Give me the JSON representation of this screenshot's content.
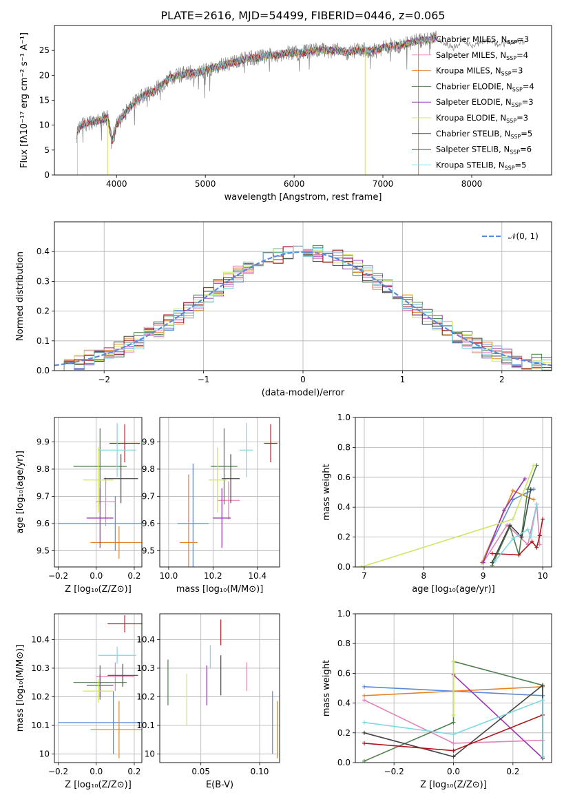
{
  "figure_title": "PLATE=2616, MJD=54499, FIBERID=0446, z=0.065",
  "chart_data": [
    {
      "id": "spectrum",
      "type": "line",
      "title": "PLATE=2616, MJD=54499, FIBERID=0446, z=0.065",
      "xlabel": "wavelength [Angstrom, rest frame]",
      "ylabel": "Flux [fλ10⁻¹⁷ erg cm⁻² s⁻¹ A⁻¹]",
      "xlim": [
        3300,
        8900
      ],
      "ylim": [
        0,
        30
      ],
      "xticks": [
        4000,
        5000,
        6000,
        7000,
        8000
      ],
      "yticks": [
        0,
        5,
        10,
        15,
        20,
        25
      ],
      "grid": false,
      "legend_position": "right",
      "series": [
        {
          "label": "Chabrier MILES, N",
          "sub": "SSP",
          "tail": "=3",
          "color": "#5b8bd8"
        },
        {
          "label": "Salpeter MILES, N",
          "sub": "SSP",
          "tail": "=4",
          "color": "#e383b9"
        },
        {
          "label": "Kroupa MILES, N",
          "sub": "SSP",
          "tail": "=3",
          "color": "#e58427"
        },
        {
          "label": "Chabrier ELODIE, N",
          "sub": "SSP",
          "tail": "=4",
          "color": "#4e7f4e"
        },
        {
          "label": "Salpeter ELODIE, N",
          "sub": "SSP",
          "tail": "=3",
          "color": "#9a32b4"
        },
        {
          "label": "Kroupa ELODIE, N",
          "sub": "SSP",
          "tail": "=3",
          "color": "#cfe462"
        },
        {
          "label": "Chabrier STELIB, N",
          "sub": "SSP",
          "tail": "=5",
          "color": "#444444"
        },
        {
          "label": "Salpeter STELIB, N",
          "sub": "SSP",
          "tail": "=6",
          "color": "#b0161c"
        },
        {
          "label": "Kroupa STELIB, N",
          "sub": "SSP",
          "tail": "=5",
          "color": "#7fd8e0"
        }
      ],
      "continuum": {
        "x": [
          3550,
          3600,
          3700,
          3800,
          3900,
          3950,
          4000,
          4100,
          4200,
          4300,
          4400,
          4500,
          4600,
          4700,
          4800,
          4900,
          5000,
          5100,
          5200,
          5300,
          5400,
          5500,
          5600,
          5700,
          5800,
          5900,
          6000,
          6100,
          6200,
          6300,
          6400,
          6500,
          6600,
          6700,
          6800,
          6900,
          7000,
          7100,
          7200,
          7300,
          7400,
          7500,
          7600
        ],
        "y": [
          8,
          10,
          10.5,
          11,
          11.5,
          7,
          10,
          12.5,
          14.5,
          16,
          16.5,
          18,
          19.5,
          20,
          20.5,
          20.5,
          21,
          21.5,
          22,
          22.5,
          23,
          23.5,
          23.5,
          24,
          24,
          24.5,
          24.5,
          24.5,
          25,
          25,
          25,
          25,
          24.5,
          25,
          25,
          25,
          25.5,
          26,
          26,
          26.5,
          27,
          27,
          27.5
        ]
      },
      "grey_tail": {
        "x": [
          7600,
          7700,
          7800,
          7900,
          8000,
          8100,
          8200,
          8300,
          8400,
          8500,
          8600
        ],
        "y": [
          27.5,
          26.5,
          25.5,
          27,
          26,
          26.5,
          27,
          26,
          26.5,
          27,
          26.5
        ]
      }
    },
    {
      "id": "residuals",
      "type": "step",
      "xlabel": "(data-model)/error",
      "ylabel": "Normed distribution",
      "xlim": [
        -2.5,
        2.5
      ],
      "ylim": [
        0,
        0.5
      ],
      "xticks": [
        -2,
        -1,
        0,
        1,
        2
      ],
      "xtick_labels": [
        "−2",
        "−1",
        "0",
        "1",
        "2"
      ],
      "yticks": [
        0.0,
        0.1,
        0.2,
        0.3,
        0.4
      ],
      "ytick_labels": [
        "0.0",
        "0.1",
        "0.2",
        "0.3",
        "0.4"
      ],
      "grid": true,
      "bin_width": 0.1,
      "gauss_label": "𝒩(0, 1)",
      "gauss_color": "#5b8bd8",
      "legend_position": "top-right"
    },
    {
      "id": "age-vs-Z",
      "type": "errorbar",
      "xlabel": "Z [log₁₀(Z/Z⊙)]",
      "ylabel": "age  [log₁₀(age/yr)]",
      "xlim": [
        -0.22,
        0.24
      ],
      "ylim": [
        9.44,
        9.99
      ],
      "xticks": [
        -0.2,
        0.0,
        0.2
      ],
      "xtick_labels": [
        "−0.2",
        "0.0",
        "0.2"
      ],
      "yticks": [
        9.5,
        9.6,
        9.7,
        9.8,
        9.9
      ],
      "grid": true,
      "points": [
        {
          "x": 0.1,
          "y": 9.6,
          "xerr": 0.3,
          "yerr": 0.1,
          "color": "#5b8bd8"
        },
        {
          "x": 0.05,
          "y": 9.68,
          "xerr": 0.05,
          "yerr": 0.09,
          "color": "#e383b9"
        },
        {
          "x": 0.12,
          "y": 9.53,
          "xerr": 0.15,
          "yerr": 0.06,
          "color": "#e58427"
        },
        {
          "x": 0.02,
          "y": 9.81,
          "xerr": 0.14,
          "yerr": 0.14,
          "color": "#4e7f4e"
        },
        {
          "x": 0.02,
          "y": 9.62,
          "xerr": 0.07,
          "yerr": 0.11,
          "color": "#9a32b4"
        },
        {
          "x": 0.01,
          "y": 9.76,
          "xerr": 0.08,
          "yerr": 0.12,
          "color": "#cfe462"
        },
        {
          "x": 0.13,
          "y": 9.765,
          "xerr": 0.09,
          "yerr": 0.09,
          "color": "#444444"
        },
        {
          "x": 0.15,
          "y": 9.895,
          "xerr": 0.08,
          "yerr": 0.07,
          "color": "#b0161c"
        },
        {
          "x": 0.11,
          "y": 9.87,
          "xerr": 0.1,
          "yerr": 0.1,
          "color": "#7fd8e0"
        }
      ]
    },
    {
      "id": "age-vs-mass",
      "type": "errorbar",
      "xlabel": "mass [log₁₀(M/M⊙)]",
      "ylabel": "",
      "xlim": [
        9.96,
        10.5
      ],
      "ylim": [
        9.44,
        9.99
      ],
      "xticks": [
        10.0,
        10.2,
        10.4
      ],
      "xtick_labels": [
        "10.0",
        "10.2",
        "10.4"
      ],
      "yticks": [
        9.5,
        9.6,
        9.7,
        9.8,
        9.9
      ],
      "grid": true,
      "points": [
        {
          "x": 10.11,
          "y": 9.6,
          "xerr": 0.07,
          "yerr": 0.22,
          "color": "#5b8bd8"
        },
        {
          "x": 10.27,
          "y": 9.685,
          "xerr": 0.05,
          "yerr": 0.07,
          "color": "#e383b9"
        },
        {
          "x": 10.09,
          "y": 9.53,
          "xerr": 0.04,
          "yerr": 0.25,
          "color": "#e58427"
        },
        {
          "x": 10.25,
          "y": 9.81,
          "xerr": 0.06,
          "yerr": 0.14,
          "color": "#4e7f4e"
        },
        {
          "x": 10.24,
          "y": 9.62,
          "xerr": 0.04,
          "yerr": 0.11,
          "color": "#9a32b4"
        },
        {
          "x": 10.22,
          "y": 9.76,
          "xerr": 0.04,
          "yerr": 0.12,
          "color": "#cfe462"
        },
        {
          "x": 10.28,
          "y": 9.765,
          "xerr": 0.04,
          "yerr": 0.09,
          "color": "#444444"
        },
        {
          "x": 10.46,
          "y": 9.895,
          "xerr": 0.03,
          "yerr": 0.07,
          "color": "#b0161c"
        },
        {
          "x": 10.35,
          "y": 9.87,
          "xerr": 0.03,
          "yerr": 0.1,
          "color": "#7fd8e0"
        }
      ]
    },
    {
      "id": "mass-vs-Z",
      "type": "errorbar",
      "xlabel": "Z [log₁₀(Z/Z⊙)]",
      "ylabel": "mass [log₁₀(M/M⊙)]",
      "xlim": [
        -0.22,
        0.24
      ],
      "ylim": [
        9.97,
        10.49
      ],
      "xticks": [
        -0.2,
        0.0,
        0.2
      ],
      "xtick_labels": [
        "−0.2",
        "0.0",
        "0.2"
      ],
      "yticks": [
        10.0,
        10.1,
        10.2,
        10.3,
        10.4
      ],
      "grid": true,
      "points": [
        {
          "x": 0.09,
          "y": 10.11,
          "xerr": 0.29,
          "yerr": 0.11,
          "color": "#5b8bd8"
        },
        {
          "x": 0.1,
          "y": 10.27,
          "xerr": 0.1,
          "yerr": 0.05,
          "color": "#e383b9"
        },
        {
          "x": 0.12,
          "y": 10.085,
          "xerr": 0.15,
          "yerr": 0.1,
          "color": "#e58427"
        },
        {
          "x": 0.02,
          "y": 10.25,
          "xerr": 0.14,
          "yerr": 0.06,
          "color": "#4e7f4e"
        },
        {
          "x": 0.02,
          "y": 10.24,
          "xerr": 0.07,
          "yerr": 0.04,
          "color": "#9a32b4"
        },
        {
          "x": 0.01,
          "y": 10.22,
          "xerr": 0.08,
          "yerr": 0.04,
          "color": "#cfe462"
        },
        {
          "x": 0.14,
          "y": 10.275,
          "xerr": 0.08,
          "yerr": 0.04,
          "color": "#444444"
        },
        {
          "x": 0.15,
          "y": 10.455,
          "xerr": 0.09,
          "yerr": 0.03,
          "color": "#b0161c"
        },
        {
          "x": 0.11,
          "y": 10.345,
          "xerr": 0.1,
          "yerr": 0.03,
          "color": "#7fd8e0"
        }
      ]
    },
    {
      "id": "mass-vs-ebv",
      "type": "errorbar",
      "xlabel": "E(B-V)",
      "ylabel": "",
      "xlim": [
        0.015,
        0.117
      ],
      "ylim": [
        9.97,
        10.49
      ],
      "xticks": [
        0.05,
        0.1
      ],
      "xtick_labels": [
        "0.05",
        "0.10"
      ],
      "yticks": [
        10.0,
        10.1,
        10.2,
        10.3,
        10.4
      ],
      "grid": true,
      "points": [
        {
          "x": 0.111,
          "y": 10.11,
          "xerr": 0,
          "yerr": 0.11,
          "color": "#5b8bd8"
        },
        {
          "x": 0.089,
          "y": 10.27,
          "xerr": 0,
          "yerr": 0.05,
          "color": "#e383b9"
        },
        {
          "x": 0.115,
          "y": 10.085,
          "xerr": 0,
          "yerr": 0.1,
          "color": "#e58427"
        },
        {
          "x": 0.022,
          "y": 10.25,
          "xerr": 0,
          "yerr": 0.08,
          "color": "#4e7f4e"
        },
        {
          "x": 0.055,
          "y": 10.24,
          "xerr": 0,
          "yerr": 0.07,
          "color": "#9a32b4"
        },
        {
          "x": 0.038,
          "y": 10.19,
          "xerr": 0,
          "yerr": 0.09,
          "color": "#cfe462"
        },
        {
          "x": 0.067,
          "y": 10.275,
          "xerr": 0,
          "yerr": 0.07,
          "color": "#444444"
        },
        {
          "x": 0.067,
          "y": 10.425,
          "xerr": 0,
          "yerr": 0.045,
          "color": "#b0161c"
        },
        {
          "x": 0.058,
          "y": 10.34,
          "xerr": 0,
          "yerr": 0.04,
          "color": "#7fd8e0"
        }
      ]
    },
    {
      "id": "weight-vs-age",
      "type": "line",
      "xlabel": "age  [log₁₀(age/yr)]",
      "ylabel": "mass weight",
      "xlim": [
        6.85,
        10.15
      ],
      "ylim": [
        0.0,
        1.0
      ],
      "xticks": [
        7,
        8,
        9,
        10
      ],
      "yticks": [
        0.0,
        0.2,
        0.4,
        0.6,
        0.8,
        1.0
      ],
      "ytick_labels": [
        "0.0",
        "0.2",
        "0.4",
        "0.6",
        "0.8",
        "1.0"
      ],
      "grid": true,
      "series": [
        {
          "color": "#5b8bd8",
          "x": [
            8.98,
            9.5,
            9.85
          ],
          "y": [
            0.03,
            0.45,
            0.52
          ]
        },
        {
          "color": "#e383b9",
          "x": [
            9.0,
            9.4,
            9.75,
            9.9,
            9.95
          ],
          "y": [
            0.03,
            0.28,
            0.15,
            0.42,
            0.15
          ]
        },
        {
          "color": "#e58427",
          "x": [
            8.98,
            9.5,
            9.85
          ],
          "y": [
            0.03,
            0.51,
            0.45
          ]
        },
        {
          "color": "#4e7f4e",
          "x": [
            9.15,
            9.45,
            9.6,
            9.75,
            9.9
          ],
          "y": [
            0.01,
            0.27,
            0.08,
            0.52,
            0.68
          ]
        },
        {
          "color": "#9a32b4",
          "x": [
            9.0,
            9.35,
            9.7
          ],
          "y": [
            0.03,
            0.38,
            0.59
          ]
        },
        {
          "color": "#cfe462",
          "x": [
            6.95,
            9.5,
            9.85
          ],
          "y": [
            0.0,
            0.32,
            0.68
          ]
        },
        {
          "color": "#444444",
          "x": [
            9.15,
            9.45,
            9.65,
            9.8
          ],
          "y": [
            0.03,
            0.28,
            0.2,
            0.52
          ]
        },
        {
          "color": "#b0161c",
          "x": [
            9.15,
            9.6,
            9.82,
            9.9,
            9.95,
            10.0
          ],
          "y": [
            0.09,
            0.08,
            0.17,
            0.13,
            0.21,
            0.32
          ]
        },
        {
          "color": "#7fd8e0",
          "x": [
            9.2,
            9.5,
            9.75,
            9.8,
            9.9
          ],
          "y": [
            0.04,
            0.19,
            0.25,
            0.2,
            0.42
          ]
        }
      ]
    },
    {
      "id": "weight-vs-Z",
      "type": "line",
      "xlabel": "Z [log₁₀(Z/Z⊙)]",
      "ylabel": "mass weight",
      "xlim": [
        -0.33,
        0.33
      ],
      "ylim": [
        0.0,
        1.0
      ],
      "xticks": [
        -0.2,
        0.0,
        0.2
      ],
      "xtick_labels": [
        "−0.2",
        "0.0",
        "0.2"
      ],
      "yticks": [
        0.0,
        0.2,
        0.4,
        0.6,
        0.8,
        1.0
      ],
      "ytick_labels": [
        "0.0",
        "0.2",
        "0.4",
        "0.6",
        "0.8",
        "1.0"
      ],
      "grid": true,
      "series": [
        {
          "color": "#5b8bd8",
          "x": [
            -0.3,
            0.0,
            0.3,
            0.3
          ],
          "y": [
            0.51,
            0.48,
            0.45,
            0.03
          ]
        },
        {
          "color": "#e383b9",
          "x": [
            -0.3,
            0.0,
            0.3
          ],
          "y": [
            0.42,
            0.13,
            0.15
          ]
        },
        {
          "color": "#e58427",
          "x": [
            -0.3,
            0.0,
            0.3
          ],
          "y": [
            0.45,
            0.48,
            0.51
          ]
        },
        {
          "color": "#4e7f4e",
          "x": [
            -0.3,
            0.0,
            0.0,
            0.3,
            0.3
          ],
          "y": [
            0.01,
            0.27,
            0.68,
            0.52,
            0.04
          ]
        },
        {
          "color": "#9a32b4",
          "x": [
            0.0,
            0.3
          ],
          "y": [
            0.59,
            0.03
          ]
        },
        {
          "color": "#cfe462",
          "x": [
            0.0,
            0.0
          ],
          "y": [
            0.32,
            0.68
          ]
        },
        {
          "color": "#444444",
          "x": [
            -0.3,
            0.0,
            0.3,
            0.3
          ],
          "y": [
            0.2,
            0.04,
            0.52,
            0.03
          ]
        },
        {
          "color": "#b0161c",
          "x": [
            -0.3,
            0.0,
            0.3
          ],
          "y": [
            0.13,
            0.08,
            0.32
          ]
        },
        {
          "color": "#7fd8e0",
          "x": [
            -0.3,
            0.0,
            0.3,
            0.3
          ],
          "y": [
            0.27,
            0.19,
            0.42,
            0.04
          ]
        }
      ]
    }
  ]
}
